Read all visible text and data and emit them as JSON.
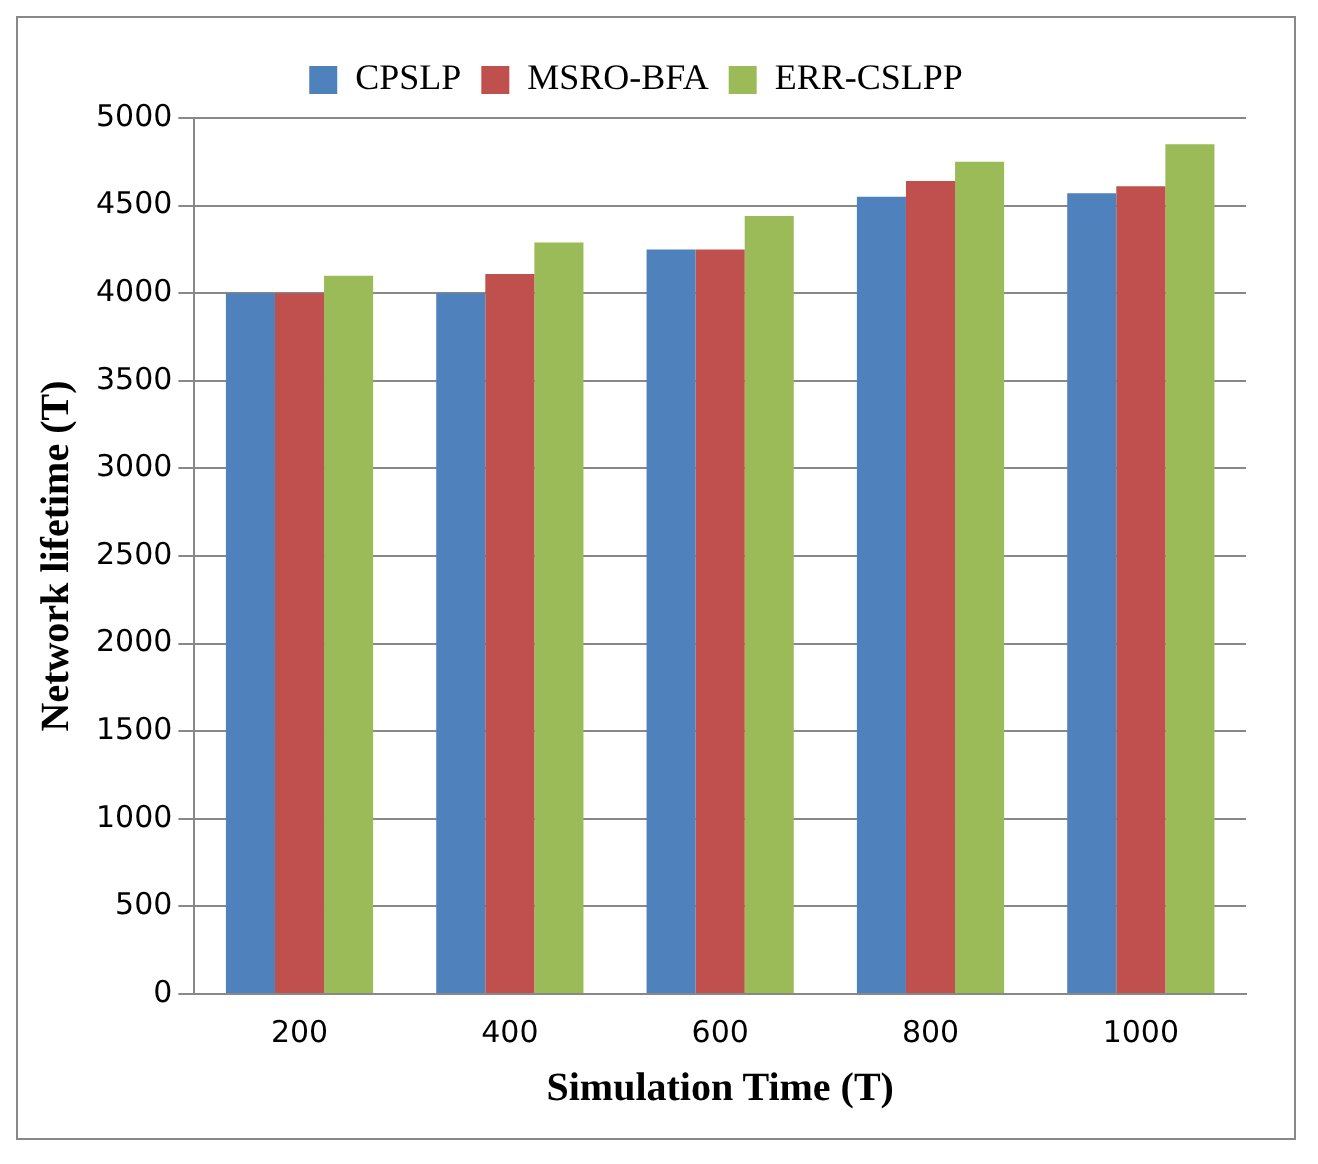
{
  "chart_data": {
    "type": "bar",
    "xlabel": "Simulation Time (T)",
    "ylabel": "Network lifetime (T)",
    "categories": [
      "200",
      "400",
      "600",
      "800",
      "1000"
    ],
    "series": [
      {
        "name": "CPSLP",
        "color": "#4f81bd",
        "values": [
          4000,
          4000,
          4250,
          4550,
          4570
        ]
      },
      {
        "name": "MSRO-BFA",
        "color": "#c0504d",
        "values": [
          4000,
          4110,
          4250,
          4640,
          4610
        ]
      },
      {
        "name": "ERR-CSLPP",
        "color": "#9bbb59",
        "values": [
          4100,
          4290,
          4440,
          4750,
          4850
        ]
      }
    ],
    "ylim": [
      0,
      5000
    ],
    "yticks": [
      0,
      500,
      1000,
      1500,
      2000,
      2500,
      3000,
      3500,
      4000,
      4500,
      5000
    ],
    "grid": "y",
    "legend": "top"
  }
}
